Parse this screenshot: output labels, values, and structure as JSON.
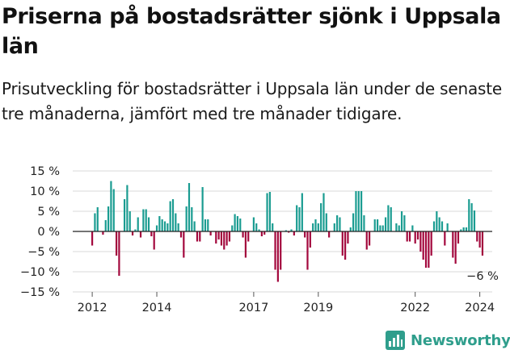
{
  "title": "Priserna på bostadsrätter sjönk i Uppsala län",
  "subtitle": "Prisutveckling för bostadsrätter i Uppsala län under de senaste tre månaderna, jämfört med tre månader tidigare.",
  "brand": "Newsworthy",
  "colors": {
    "positive": "#1a9c91",
    "negative": "#a3083d",
    "brand": "#2f9e8c"
  },
  "chart_data": {
    "type": "bar",
    "title": "Priserna på bostadsrätter sjönk i Uppsala län",
    "xlabel": "",
    "ylabel": "",
    "ylim": [
      -15,
      15
    ],
    "y_ticks": [
      15,
      10,
      5,
      0,
      -5,
      -10,
      -15
    ],
    "y_tick_labels": [
      "15 %",
      "10 %",
      "5 %",
      "0 %",
      "−5 %",
      "−10 %",
      "−15 %"
    ],
    "x_ticks": [
      "2012",
      "2014",
      "2017",
      "2019",
      "2022",
      "2024"
    ],
    "x_start": "2012-01",
    "end_label": "−6 %",
    "grid": true,
    "values": [
      -3.5,
      4.5,
      6,
      0,
      -0.8,
      2.8,
      6.2,
      12.5,
      10.5,
      -6,
      -11,
      0,
      8,
      11.5,
      5,
      -1,
      0.5,
      3.5,
      -1.5,
      5.5,
      5.5,
      3.5,
      -1.2,
      -4.5,
      1.5,
      3.8,
      3,
      2.5,
      2,
      7.5,
      8,
      4.5,
      2,
      -1.5,
      -6.5,
      6.2,
      12,
      6,
      2.5,
      -2.5,
      -2.5,
      11,
      3,
      3,
      -1,
      0,
      -3,
      -2,
      -3.5,
      -4.5,
      -3.5,
      -2.5,
      1.5,
      4.3,
      3.8,
      3.2,
      -1.5,
      -6.5,
      -2.5,
      0,
      3.5,
      2,
      0.5,
      -1.2,
      -0.8,
      9.5,
      9.8,
      2,
      -9.5,
      -12.5,
      -9.5,
      0,
      0.3,
      -0.3,
      0.5,
      -1,
      6.5,
      6,
      9.5,
      -1.5,
      -9.5,
      -4,
      2,
      3,
      2,
      7,
      9.5,
      4.5,
      -1.5,
      0,
      2,
      4,
      3.5,
      -6,
      -7,
      -3,
      1,
      4.5,
      10,
      10,
      10,
      4,
      -4.5,
      -3.5,
      0,
      3,
      3,
      1.5,
      1.5,
      3.5,
      6.5,
      6,
      0,
      2,
      1.5,
      5,
      4,
      -2.5,
      -2.5,
      1.5,
      -3,
      -2,
      -5,
      -7,
      -9,
      -9,
      -6,
      2.5,
      5,
      3.5,
      2.5,
      -3.5,
      2,
      0,
      -6.5,
      -8,
      -3,
      0.5,
      1,
      1,
      8,
      7,
      5.2,
      -2.5,
      -4,
      -6
    ]
  }
}
